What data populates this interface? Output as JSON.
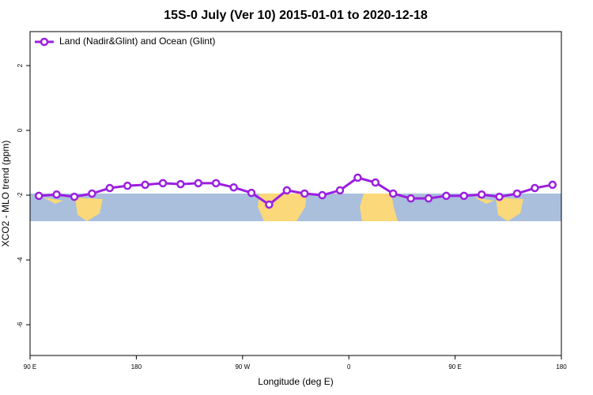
{
  "chart_data": {
    "type": "line",
    "title": "15S-0 July (Ver 10)   2015-01-01 to 2020-12-18",
    "xlabel": "Longitude (deg E)",
    "ylabel": "XCO2 - MLO trend (ppm)",
    "x": [
      6,
      18,
      30,
      42,
      54,
      66,
      78,
      90,
      102,
      114,
      126,
      138,
      150,
      162,
      174,
      186,
      198,
      210,
      222,
      234,
      246,
      258,
      270,
      282,
      294,
      306,
      318,
      330,
      342,
      354
    ],
    "series": [
      {
        "name": "Land (Nadir&Glint) and Ocean (Glint)",
        "color": "#9b1fe0",
        "values": [
          -2.02,
          -1.98,
          -2.05,
          -1.95,
          -1.78,
          -1.71,
          -1.68,
          -1.63,
          -1.66,
          -1.63,
          -1.63,
          -1.76,
          -1.93,
          -2.29,
          -1.85,
          -1.95,
          -2.0,
          -1.85,
          -1.46,
          -1.61,
          -1.95,
          -2.1,
          -2.1,
          -2.02,
          -2.02,
          -1.98,
          -2.05,
          -1.95,
          -1.78,
          -1.68
        ]
      }
    ],
    "xlim": [
      0,
      360
    ],
    "xticks": [
      {
        "value": 0,
        "label": "90 E"
      },
      {
        "value": 72,
        "label": "180"
      },
      {
        "value": 144,
        "label": "90 W"
      },
      {
        "value": 216,
        "label": "0"
      },
      {
        "value": 288,
        "label": "90 E"
      },
      {
        "value": 360,
        "label": "180"
      }
    ],
    "ylim": [
      -6.95,
      3.05
    ],
    "yticks": [
      -6,
      -4,
      -2,
      0,
      2
    ],
    "legend": "top-left"
  }
}
